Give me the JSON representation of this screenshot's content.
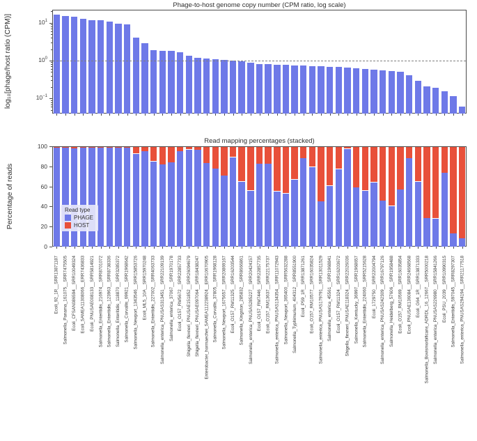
{
  "samples": [
    "Ecoli_92_1R__SRR13871187",
    "Salmonella_Panama_161075__SRR7475505",
    "Ecoli_CFSAN086594__SRR10049324",
    "Ecoli_SAMEA11308066__ERR7436833",
    "Ecoli_PNUSAE008133__SRR5814921",
    "Salmonella_Enteritidis_216974__SRR8701072",
    "Salmonella_Enteritidis_123963__SRR8738336",
    "Salmonella_Enteritidis_118870__SRR3285372",
    "Salmonella_Corvallis_69921__SRR1968642",
    "Salmonella_Newport_1343546__SRR15853726",
    "Ecoli_ML5_10A__SRR15970248",
    "Salmonella_Enteritidis_227002__SRR4063733",
    "Salmonella_enterica_PNUSAS313451__SRR22109139",
    "Salmonella_enterica_37067__SRR1970178",
    "Ecoli_O157_RM5672__SRR22857733",
    "Shigella_flexneri_PNUSAE151852__SRR26094679",
    "Shigella_flexneri_PNUSAE097064__SRR18438247",
    "Enterobacter_hormaechei_SAMEA112238924__ERR10670905",
    "Salmonella_Corvallis_37805__SRR1968128",
    "Salmonella_Newport_1675657__SRR20869167",
    "Ecoli_O157_RM11325__SRR16203544",
    "Salmonella_Kingston_285832__SRR8666861",
    "Salmonella_enterica_PNUSAS285227__SRR20424157",
    "Ecoli_O157_RM7446__SRR22857735",
    "Ecoli_O157_RM13637__SRR22175737",
    "Salmonella_enterica_PNUSAS134354__SRR11072943",
    "Salmonella_Newport_365400__SRR5632288",
    "Salmonella_Typhimurium_404312__SRR8551900",
    "Ecoli_P59_1R__SRR13871261",
    "Ecoli_O157_RM10577__SRR16035824",
    "Salmonella_enterica_PNUSAS179791__SRR13011529",
    "Salmonella_enterica_45561__SRR1968841",
    "Ecoli_O157_RM11324__SRR16203672",
    "Shigella_flexneri_PNUSAE118324__SRR22026036",
    "Salmonella_Kentucky_36997__SRR1968657",
    "Salmonella_Enteritidis_224060__SRR5215628",
    "Ecoli_1729750__SRR22004794",
    "Salmonella_enterica_PNUSAS242309__SRR16797126",
    "Salmonella_Heidelberg_57606__SRR1958488",
    "Ecoli_O157_RM10569__SRR16035854",
    "Ecoli_PNUSAE136084__SRR24668568",
    "Ecoli_G64_1R__SRR13871333",
    "Salmonella_Bovismorbificans_ADRDL_16_12667__SRR5000218",
    "Salmonella_enterica_PNUSAS226980__SRR15841266",
    "Ecoli_PSU_2039__SRR10990315",
    "Salmonella_Enteritidis_597045__SRR8297307",
    "Salmonella_enterica_PNUSAS294194__SRR21177518"
  ],
  "chart_data": [
    {
      "type": "bar",
      "title": "Phage-to-host genome copy number (CPM ratio, log scale)",
      "ylabel": "log₁₀[phage/host ratio (CPM)]",
      "xlabel": "",
      "yscale": "log",
      "ylim": [
        0.04,
        22
      ],
      "ytick_exponents": [
        1,
        0,
        -1
      ],
      "reference_line": 1.0,
      "bar_color": "#6e79e8",
      "grid": false,
      "categories_ref": "samples",
      "values": [
        17,
        16,
        15,
        13,
        12.2,
        12,
        11.4,
        9.7,
        9.4,
        4.2,
        3.0,
        1.95,
        1.9,
        1.85,
        1.72,
        1.4,
        1.22,
        1.18,
        1.13,
        1.09,
        1.06,
        1.01,
        0.9,
        0.86,
        0.83,
        0.81,
        0.8,
        0.79,
        0.77,
        0.75,
        0.73,
        0.71,
        0.7,
        0.68,
        0.65,
        0.62,
        0.6,
        0.57,
        0.55,
        0.52,
        0.42,
        0.3,
        0.22,
        0.2,
        0.16,
        0.12,
        0.065
      ]
    },
    {
      "type": "stacked-bar",
      "title": "Read mapping percentages (stacked)",
      "ylabel": "Percentage of reads",
      "xlabel": "",
      "ylim": [
        0,
        100
      ],
      "yticks": [
        0,
        20,
        40,
        60,
        80,
        100
      ],
      "grid": false,
      "categories_ref": "samples",
      "legend": {
        "title": "Read type",
        "position": "lower left",
        "entries": [
          {
            "label": "PHAGE",
            "color": "#6e79e8"
          },
          {
            "label": "HOST",
            "color": "#e8503a"
          }
        ]
      },
      "series": [
        {
          "name": "PHAGE",
          "color": "#6e79e8",
          "values": [
            99.3,
            99.3,
            98.6,
            99.3,
            99.3,
            99.3,
            99.3,
            99.3,
            99.3,
            93.3,
            95.7,
            85.7,
            82.6,
            84.5,
            95.7,
            97.4,
            96.9,
            83.8,
            78.3,
            71.4,
            89.8,
            65.5,
            56.4,
            83.3,
            83.3,
            55.7,
            53.6,
            67.6,
            88.6,
            80.2,
            45.7,
            61.2,
            77.9,
            98.1,
            59.5,
            56.4,
            64.8,
            46.4,
            41.0,
            57.6,
            88.6,
            65.5,
            29.0,
            28.6,
            74.3,
            13.6,
            8.8
          ]
        },
        {
          "name": "HOST",
          "color": "#e8503a",
          "values": [
            0.7,
            0.7,
            1.4,
            0.7,
            0.7,
            0.7,
            0.7,
            0.7,
            0.7,
            6.7,
            4.3,
            14.3,
            17.4,
            15.5,
            4.3,
            2.6,
            3.1,
            16.2,
            21.7,
            28.6,
            10.2,
            34.5,
            43.6,
            16.7,
            16.7,
            44.3,
            46.4,
            32.4,
            11.4,
            19.8,
            54.3,
            38.8,
            22.1,
            1.9,
            40.5,
            43.6,
            35.2,
            53.6,
            59.0,
            42.4,
            11.4,
            34.5,
            71.0,
            71.4,
            25.7,
            86.4,
            91.2
          ]
        }
      ]
    }
  ]
}
